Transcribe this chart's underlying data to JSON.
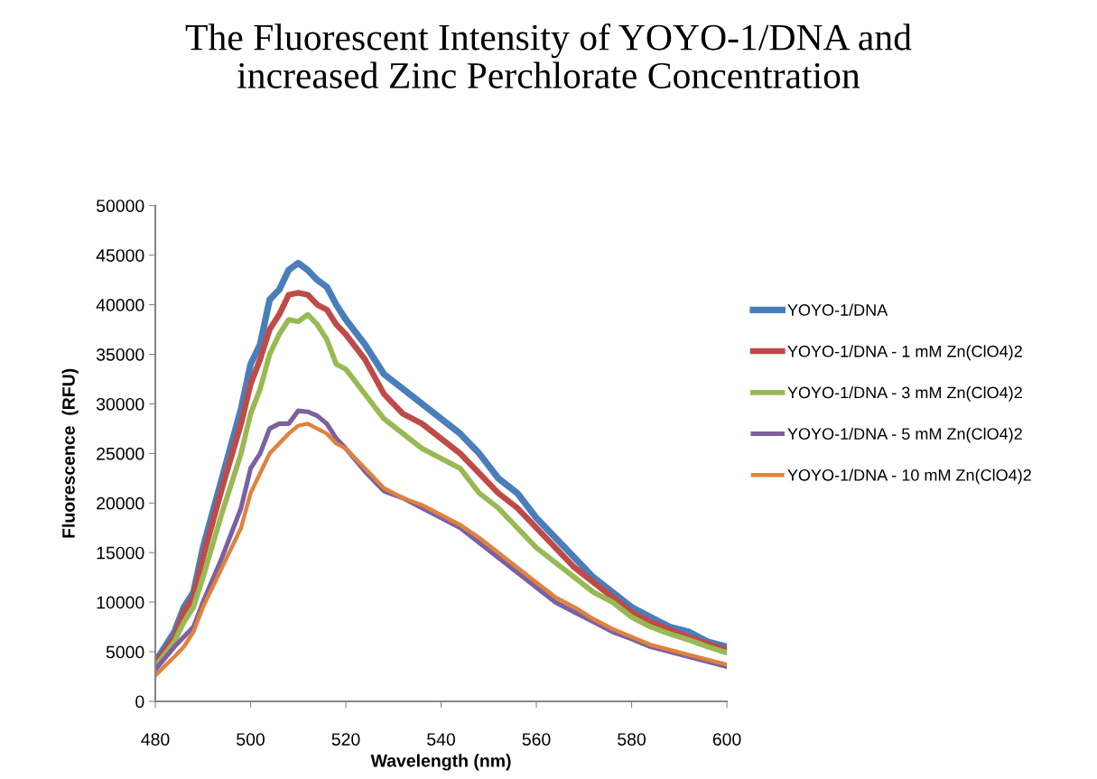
{
  "chart_data": {
    "type": "line",
    "title": "The Fluorescent Intensity of YOYO-1/DNA and\nincreased Zinc Perchlorate Concentration",
    "xlabel": "Wavelength (nm)",
    "ylabel": "Fluorescence  (RFU)",
    "x": [
      480,
      484,
      486,
      488,
      490,
      494,
      498,
      500,
      502,
      504,
      506,
      508,
      510,
      512,
      514,
      516,
      518,
      520,
      524,
      528,
      532,
      536,
      540,
      544,
      548,
      552,
      556,
      560,
      564,
      568,
      572,
      576,
      580,
      584,
      588,
      592,
      596,
      600
    ],
    "xlim": [
      480,
      600
    ],
    "xticks": [
      480,
      500,
      520,
      540,
      560,
      580,
      600
    ],
    "ylim": [
      0,
      50000
    ],
    "yticks": [
      0,
      5000,
      10000,
      15000,
      20000,
      25000,
      30000,
      35000,
      40000,
      45000,
      50000
    ],
    "grid": false,
    "legend": "right",
    "marker": "none",
    "line_style": "solid",
    "series": [
      {
        "name": "YOYO-1/DNA",
        "color": "#4a7ebb",
        "values": [
          4000,
          7000,
          9500,
          11000,
          15500,
          22500,
          29500,
          34000,
          36000,
          40500,
          41500,
          43500,
          44200,
          43500,
          42500,
          41800,
          40000,
          38500,
          36000,
          33000,
          31500,
          30000,
          28500,
          27000,
          25000,
          22500,
          21000,
          18500,
          16500,
          14500,
          12500,
          11000,
          9500,
          8500,
          7500,
          7000,
          6000,
          5500
        ]
      },
      {
        "name": "YOYO-1/DNA - 1 mM Zn(ClO4)2",
        "color": "#be4b48",
        "values": [
          3800,
          6500,
          9000,
          10500,
          14500,
          21500,
          28000,
          32000,
          34500,
          37500,
          39000,
          41000,
          41200,
          41000,
          40000,
          39500,
          38000,
          37000,
          34500,
          31000,
          29000,
          28000,
          26500,
          25000,
          23000,
          21000,
          19500,
          17500,
          15500,
          13500,
          12000,
          10500,
          9000,
          8000,
          7200,
          6500,
          5800,
          5200
        ]
      },
      {
        "name": "YOYO-1/DNA - 3 mM Zn(ClO4)2",
        "color": "#98b954",
        "values": [
          3500,
          6000,
          8000,
          9500,
          12500,
          19000,
          25000,
          29000,
          31500,
          35000,
          37000,
          38500,
          38300,
          39000,
          38000,
          36500,
          34000,
          33500,
          31000,
          28500,
          27000,
          25500,
          24500,
          23500,
          21000,
          19500,
          17500,
          15500,
          14000,
          12500,
          11000,
          10000,
          8500,
          7500,
          6800,
          6200,
          5500,
          4900
        ]
      },
      {
        "name": "YOYO-1/DNA - 5 mM Zn(ClO4)2",
        "color": "#7d60a0",
        "values": [
          3200,
          5500,
          6500,
          7500,
          10000,
          14500,
          19500,
          23500,
          25000,
          27500,
          28000,
          28000,
          29300,
          29200,
          28800,
          28000,
          26500,
          25500,
          23200,
          21200,
          20500,
          19500,
          18500,
          17500,
          16000,
          14500,
          13000,
          11500,
          10000,
          9000,
          8000,
          7000,
          6300,
          5500,
          5000,
          4500,
          4000,
          3500
        ]
      },
      {
        "name": "YOYO-1/DNA - 10 mM Zn(ClO4)2",
        "color": "#e0823d",
        "values": [
          2600,
          4500,
          5500,
          7000,
          9500,
          13500,
          17500,
          21000,
          23000,
          25000,
          26000,
          27000,
          27800,
          28000,
          27500,
          27000,
          26000,
          25500,
          23500,
          21500,
          20500,
          19800,
          18800,
          17800,
          16500,
          15000,
          13500,
          12000,
          10500,
          9500,
          8300,
          7300,
          6500,
          5700,
          5200,
          4700,
          4200,
          3700
        ]
      }
    ]
  }
}
